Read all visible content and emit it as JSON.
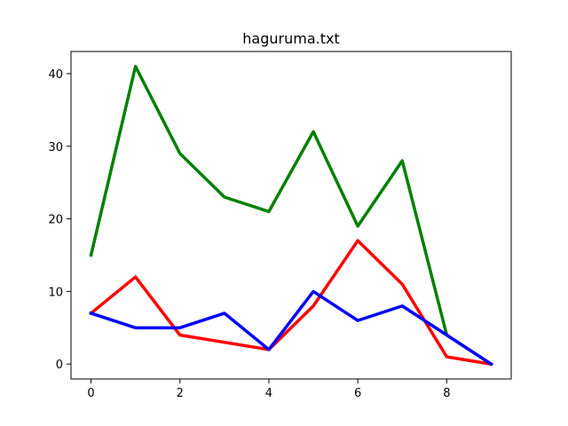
{
  "chart_data": {
    "type": "line",
    "title": "haguruma.txt",
    "xlabel": "",
    "ylabel": "",
    "x": [
      0,
      1,
      2,
      3,
      4,
      5,
      6,
      7,
      8,
      9
    ],
    "xlim": [
      -0.45,
      9.45
    ],
    "ylim": [
      -2.05,
      43.05
    ],
    "xticks": [
      0,
      2,
      4,
      6,
      8
    ],
    "yticks": [
      0,
      10,
      20,
      30,
      40
    ],
    "grid": false,
    "legend": false,
    "series": [
      {
        "color": "#008000",
        "values": [
          15,
          41,
          29,
          23,
          21,
          32,
          19,
          28,
          4,
          0
        ]
      },
      {
        "color": "#ff0000",
        "values": [
          7,
          12,
          4,
          3,
          2,
          8,
          17,
          11,
          1,
          0
        ]
      },
      {
        "color": "#0000ff",
        "values": [
          7,
          5,
          5,
          7,
          2,
          10,
          6,
          8,
          4,
          0
        ]
      }
    ]
  }
}
